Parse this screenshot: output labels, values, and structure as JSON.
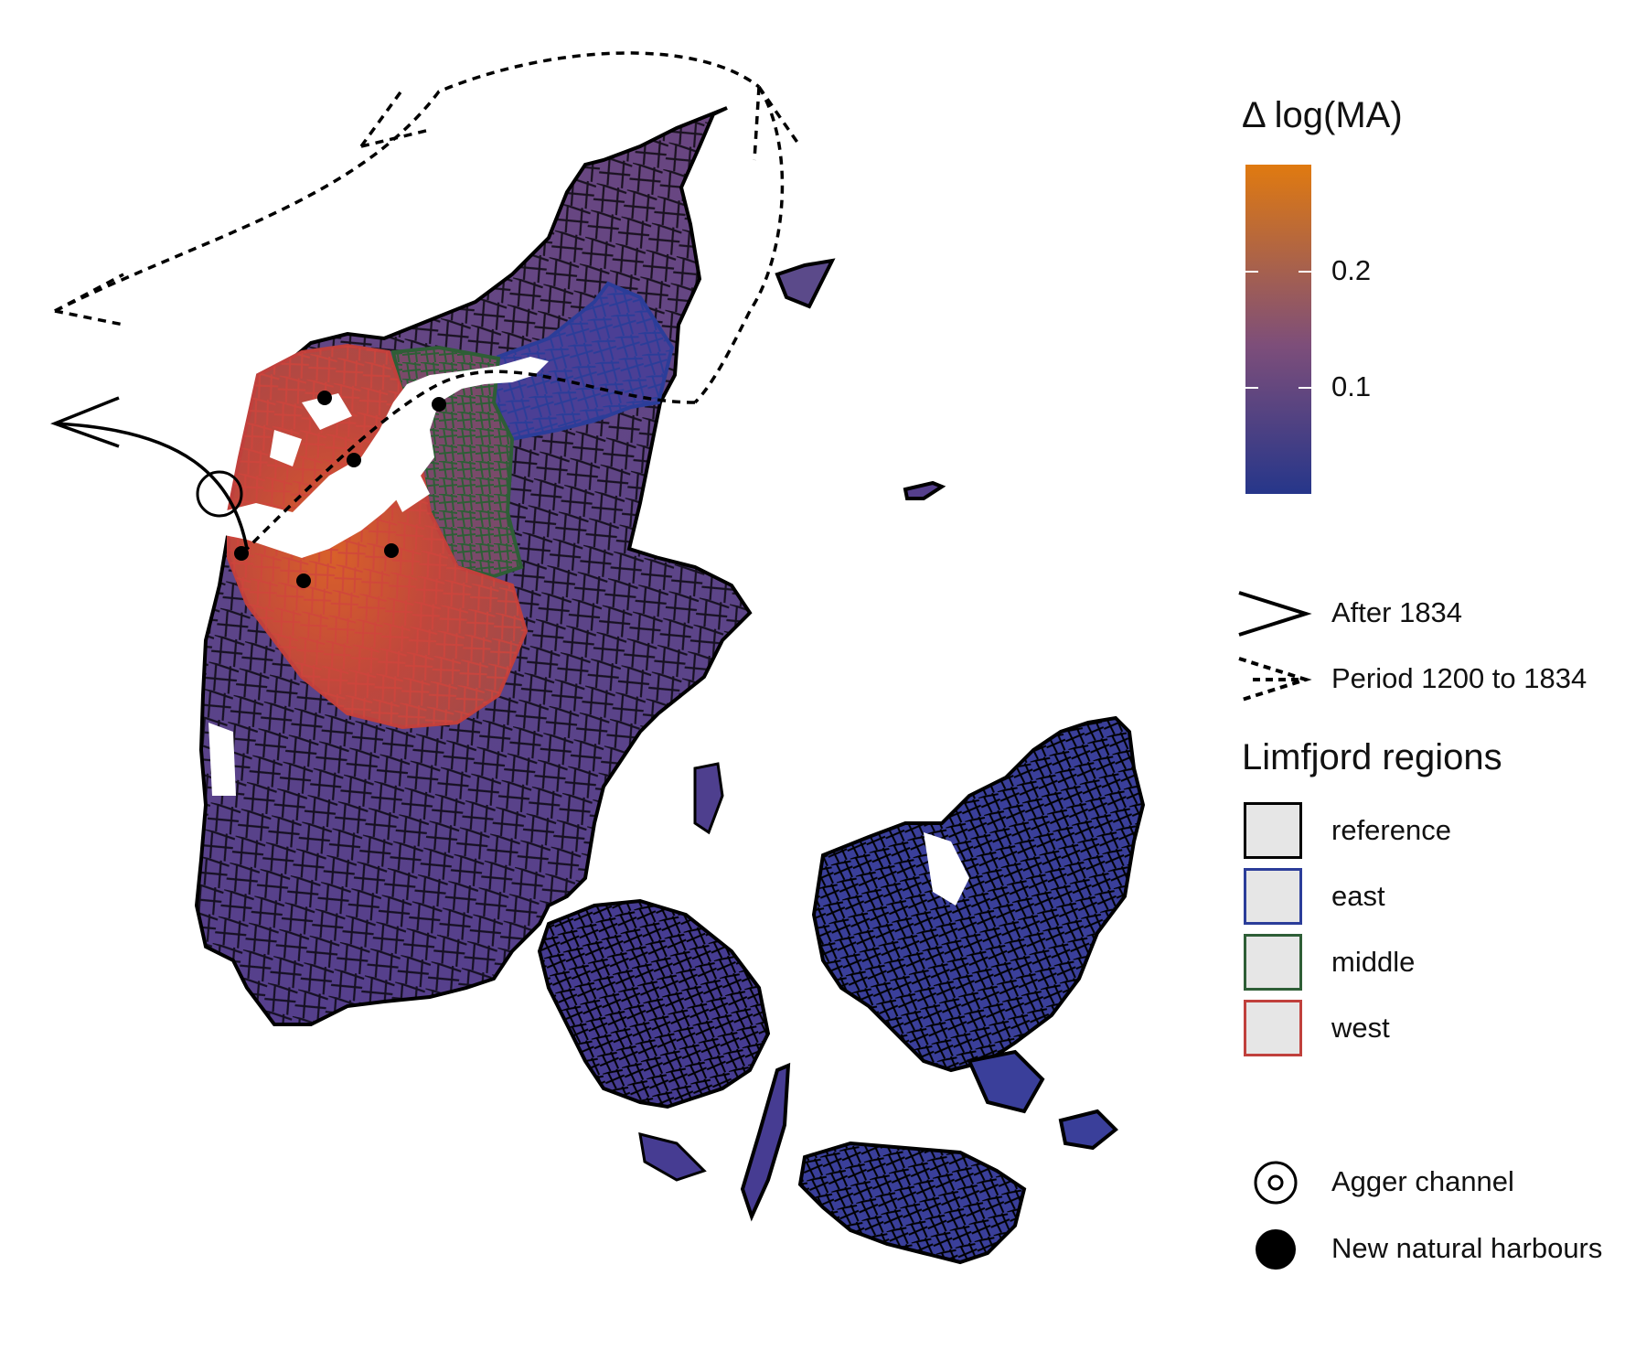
{
  "legend_ma": {
    "title": "Δ log(MA)",
    "ticks": [
      {
        "value": 0.2,
        "label": "0.2"
      },
      {
        "value": 0.1,
        "label": "0.1"
      }
    ],
    "range": [
      0.01,
      0.29
    ],
    "colors": {
      "low": "#26368a",
      "mid": "#7d4e7a",
      "high": "#e07a10"
    }
  },
  "legend_routes": {
    "items": [
      {
        "label": "After 1834",
        "style": "solid-arrow"
      },
      {
        "label": "Period 1200 to 1834",
        "style": "dashed-arrow"
      }
    ]
  },
  "legend_regions": {
    "title": "Limfjord regions",
    "items": [
      {
        "label": "reference",
        "color": "#000000"
      },
      {
        "label": "east",
        "color": "#2b3d99"
      },
      {
        "label": "middle",
        "color": "#2e5e36"
      },
      {
        "label": "west",
        "color": "#c0403c"
      }
    ]
  },
  "legend_markers": {
    "items": [
      {
        "label": "Agger channel",
        "icon": "agger-channel-icon"
      },
      {
        "label": "New natural harbours",
        "icon": "harbour-dot-icon"
      }
    ]
  },
  "region_colors": {
    "east_fill": "#3a3f9a",
    "reference_fill": "#5c3f86",
    "west_fill": "#c0473c"
  }
}
